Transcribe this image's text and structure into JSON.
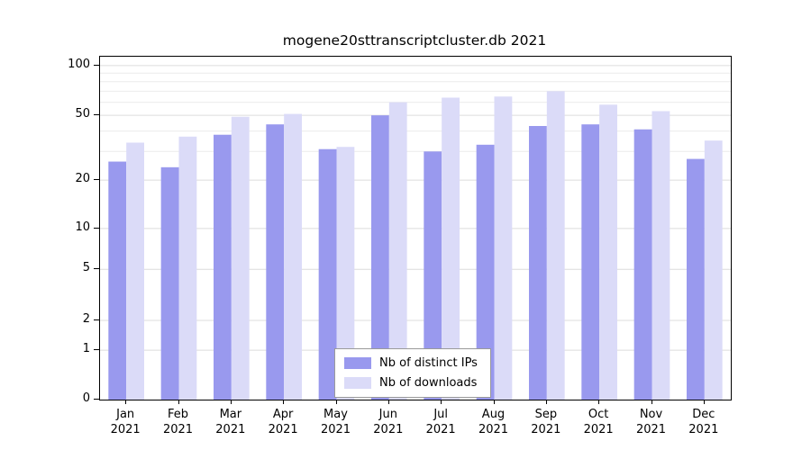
{
  "title": "mogene20sttranscriptcluster.db 2021",
  "chart_data": {
    "type": "bar",
    "categories": [
      "Jan",
      "Feb",
      "Mar",
      "Apr",
      "May",
      "Jun",
      "Jul",
      "Aug",
      "Sep",
      "Oct",
      "Nov",
      "Dec"
    ],
    "year_label": "2021",
    "series": [
      {
        "name": "Nb of distinct IPs",
        "color": "#9999ee",
        "values": [
          26,
          24,
          38,
          44,
          31,
          50,
          30,
          33,
          43,
          44,
          41,
          27
        ]
      },
      {
        "name": "Nb of downloads",
        "color": "#dbdbf8",
        "values": [
          34,
          37,
          49,
          51,
          32,
          60,
          64,
          65,
          70,
          58,
          53,
          35
        ]
      }
    ],
    "yticks": [
      0,
      1,
      2,
      5,
      10,
      20,
      50,
      100
    ],
    "minor_gridlines": [
      30,
      40,
      60,
      70,
      80,
      90
    ],
    "ylim": [
      0,
      113
    ],
    "grid": true,
    "legend_position": "bottom-center",
    "colors": {
      "major_grid": "#dcdcdc",
      "minor_grid": "#ececec",
      "axis": "#000000",
      "background": "#ffffff"
    }
  }
}
